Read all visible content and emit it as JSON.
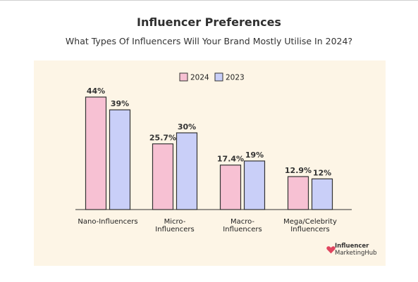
{
  "chart_data": {
    "type": "bar",
    "title": "Influencer Preferences",
    "subtitle": "What Types Of Influencers Will Your Brand Mostly Utilise In 2024?",
    "categories": [
      [
        "Nano-Influencers"
      ],
      [
        "Micro-",
        "Influencers"
      ],
      [
        "Macro-",
        "Influencers"
      ],
      [
        "Mega/Celebrity",
        "Influencers"
      ]
    ],
    "series": [
      {
        "name": "2024",
        "values": [
          44,
          25.7,
          17.4,
          12.9
        ],
        "labels": [
          "44%",
          "25.7%",
          "17.4%",
          "12.9%"
        ],
        "color": "#f7c1d3"
      },
      {
        "name": "2023",
        "values": [
          39,
          30,
          19,
          12
        ],
        "labels": [
          "39%",
          "30%",
          "19%",
          "12%"
        ],
        "color": "#c9cff8"
      }
    ],
    "ylim": [
      0,
      44
    ],
    "grid": false,
    "legend_position": "top-center"
  },
  "branding": {
    "line1": "Influencer",
    "line2": "MarketingHub"
  }
}
